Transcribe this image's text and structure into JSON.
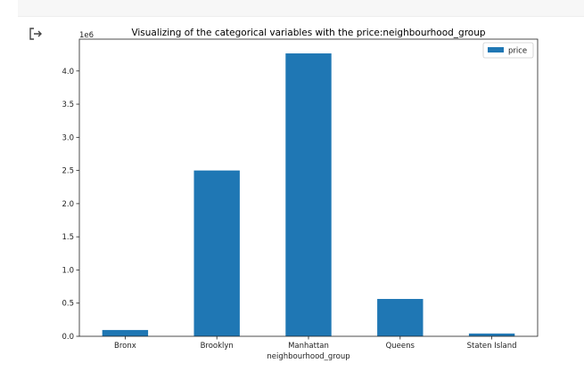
{
  "icons": {
    "output": "output-redirect-icon"
  },
  "chart_data": {
    "type": "bar",
    "title": "Visualizing of the categorical variables with the price:neighbourhood_group",
    "xlabel": "neighbourhood_group",
    "ylabel": "",
    "offset_text": "1e6",
    "categories": [
      "Bronx",
      "Brooklyn",
      "Manhattan",
      "Queens",
      "Staten Island"
    ],
    "series": [
      {
        "name": "price",
        "color": "#1f77b4",
        "values": [
          95000,
          2500000,
          4265000,
          563000,
          42000
        ]
      }
    ],
    "yticks": [
      0.0,
      0.5,
      1.0,
      1.5,
      2.0,
      2.5,
      3.0,
      3.5,
      4.0
    ],
    "ytick_labels": [
      "0.0",
      "0.5",
      "1.0",
      "1.5",
      "2.0",
      "2.5",
      "3.0",
      "3.5",
      "4.0"
    ],
    "ylim": [
      0,
      4480000
    ],
    "legend": {
      "position": "top-right"
    },
    "grid": false
  }
}
